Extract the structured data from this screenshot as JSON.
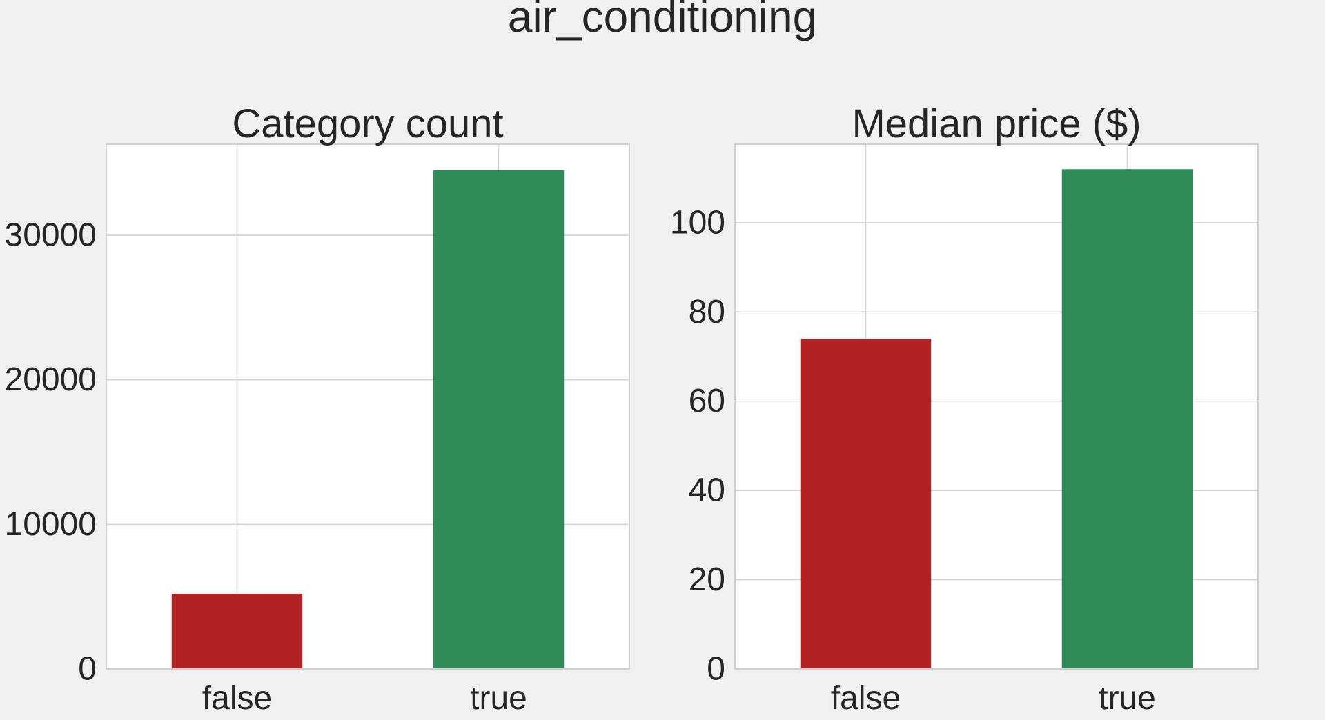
{
  "figure": {
    "title": "air_conditioning",
    "background": "#f0f0f0"
  },
  "chart_data": [
    {
      "type": "bar",
      "title": "Category count",
      "xlabel": "",
      "ylabel": "",
      "categories": [
        "false",
        "true"
      ],
      "values": [
        5200,
        34500
      ],
      "colors": [
        "#b22222",
        "#2e8b57"
      ],
      "ylim": [
        0,
        36300
      ],
      "yticks": [
        0,
        10000,
        20000,
        30000
      ],
      "ytick_labels": [
        "0",
        "10000",
        "20000",
        "30000"
      ],
      "grid": true,
      "legend": "none"
    },
    {
      "type": "bar",
      "title": "Median price ($)",
      "xlabel": "",
      "ylabel": "",
      "categories": [
        "false",
        "true"
      ],
      "values": [
        74,
        112
      ],
      "colors": [
        "#b22222",
        "#2e8b57"
      ],
      "ylim": [
        0,
        117.6
      ],
      "yticks": [
        0,
        20,
        40,
        60,
        80,
        100
      ],
      "ytick_labels": [
        "0",
        "20",
        "40",
        "60",
        "80",
        "100"
      ],
      "grid": true,
      "legend": "none"
    }
  ]
}
